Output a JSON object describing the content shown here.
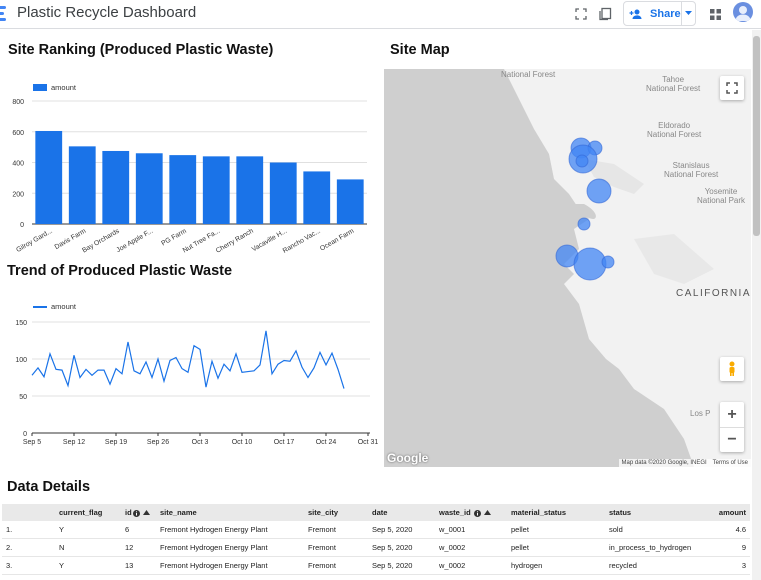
{
  "app": {
    "title": "Plastic Recycle Dashboard",
    "share_label": "Share"
  },
  "sections": {
    "ranking_title": "Site Ranking (Produced Plastic Waste)",
    "trend_title": "Trend of Produced Plastic Waste",
    "map_title": "Site Map",
    "details_title": "Data Details"
  },
  "chart_data": [
    {
      "type": "bar",
      "title": "Site Ranking (Produced Plastic Waste)",
      "legend": "amount",
      "legend_position": "top-left",
      "categories": [
        "Gilroy Gard...",
        "Davis Farm",
        "Bay Orchards",
        "Joe Apple F...",
        "PG Farm",
        "Nut Tree Fa...",
        "Cherry Ranch",
        "Vacaville H...",
        "Rancho Vac...",
        "Ocean Farm"
      ],
      "series": [
        {
          "name": "amount",
          "values": [
            605,
            505,
            475,
            460,
            448,
            440,
            440,
            400,
            342,
            290
          ]
        }
      ],
      "yticks": [
        "0",
        "200",
        "400",
        "600",
        "800"
      ],
      "ylim": [
        0,
        800
      ],
      "grid": true,
      "color": "#1a73e8"
    },
    {
      "type": "line",
      "title": "Trend of Produced Plastic Waste",
      "legend": "amount",
      "legend_position": "top-left",
      "x_start": "Sep 5",
      "x_end": "Oct 31",
      "xticks": [
        "Sep 5",
        "Sep 12",
        "Sep 19",
        "Sep 26",
        "Oct 3",
        "Oct 10",
        "Oct 17",
        "Oct 24",
        "Oct 31"
      ],
      "yticks": [
        "0",
        "50",
        "100",
        "150"
      ],
      "ylim": [
        0,
        150
      ],
      "grid": true,
      "color": "#1a73e8",
      "series": [
        {
          "name": "amount",
          "values": [
            78,
            88,
            76,
            107,
            86,
            85,
            64,
            105,
            75,
            86,
            78,
            85,
            85,
            66,
            87,
            80,
            123,
            84,
            80,
            96,
            75,
            100,
            70,
            98,
            102,
            87,
            82,
            118,
            113,
            62,
            97,
            74,
            93,
            84,
            107,
            82,
            83,
            84,
            92,
            138,
            80,
            93,
            98,
            97,
            111,
            89,
            75,
            88,
            109,
            92,
            108,
            86,
            60
          ]
        }
      ]
    }
  ],
  "map": {
    "labels": {
      "national_forest": "National Forest",
      "tahoe": "Tahoe\nNational Forest",
      "eldorado": "Eldorado\nNational Forest",
      "stanislaus": "Stanislaus\nNational Forest",
      "yosemite": "Yosemite\nNational Park",
      "california": "CALIFORNIA",
      "los_padres": "Los P"
    },
    "google": "Google",
    "map_data": "Map data ©2020 Google, INEGI",
    "terms": "Terms of Use",
    "zoom_in": "+",
    "zoom_out": "−"
  },
  "table": {
    "columns": [
      "",
      "current_flag",
      "id",
      "site_name",
      "site_city",
      "date",
      "waste_id",
      "material_status",
      "status",
      "amount"
    ],
    "rows": [
      {
        "idx": "1.",
        "current_flag": "Y",
        "id": "6",
        "site_name": "Fremont Hydrogen Energy Plant",
        "site_city": "Fremont",
        "date": "Sep 5, 2020",
        "waste_id": "w_0001",
        "material_status": "pellet",
        "status": "sold",
        "amount": "4.6"
      },
      {
        "idx": "2.",
        "current_flag": "N",
        "id": "12",
        "site_name": "Fremont Hydrogen Energy Plant",
        "site_city": "Fremont",
        "date": "Sep 5, 2020",
        "waste_id": "w_0002",
        "material_status": "pellet",
        "status": "in_process_to_hydrogen",
        "amount": "9"
      },
      {
        "idx": "3.",
        "current_flag": "Y",
        "id": "13",
        "site_name": "Fremont Hydrogen Energy Plant",
        "site_city": "Fremont",
        "date": "Sep 5, 2020",
        "waste_id": "w_0002",
        "material_status": "hydrogen",
        "status": "recycled",
        "amount": "3"
      }
    ]
  },
  "colors": {
    "accent": "#1a73e8",
    "bar": "#1a73e8",
    "marker": "#4285f4"
  },
  "icons": [
    "app-logo-icon",
    "fullscreen-icon",
    "copy-icon",
    "add-person-icon",
    "chevron-down-icon",
    "apps-grid-icon",
    "account-icon",
    "map-fullscreen-icon",
    "pegman-icon",
    "sort-asc-icon",
    "info-icon"
  ]
}
